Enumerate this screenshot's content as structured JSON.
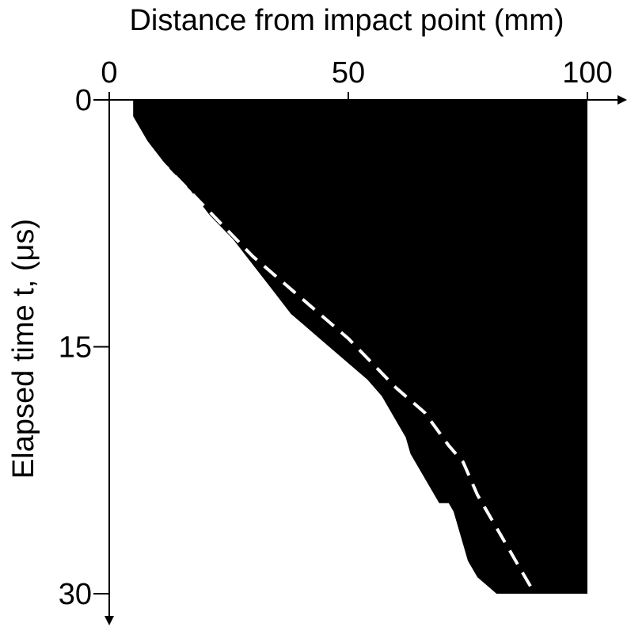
{
  "chart_data": {
    "type": "area",
    "title": "",
    "xlabel": "Distance from impact point (mm)",
    "ylabel": "Elapsed time t, (μs)",
    "xlim": [
      0,
      100
    ],
    "ylim": [
      0,
      30
    ],
    "x_axis_position": "top",
    "y_axis_inverted": true,
    "grid": false,
    "x_ticks": [
      {
        "value": 0,
        "label": "0"
      },
      {
        "value": 50,
        "label": "50"
      },
      {
        "value": 100,
        "label": "100"
      }
    ],
    "y_ticks": [
      {
        "value": 0,
        "label": "0"
      },
      {
        "value": 15,
        "label": "15"
      },
      {
        "value": 30,
        "label": "30"
      }
    ],
    "series": [
      {
        "kind": "filled-region",
        "fill": "#000000",
        "x": [
          5,
          8,
          12,
          17,
          21,
          26,
          30,
          34,
          38,
          42,
          46,
          50,
          54,
          57,
          60,
          62,
          63,
          65,
          67,
          69,
          71,
          72,
          73,
          74,
          75,
          77,
          79,
          81,
          83,
          85,
          87,
          100,
          100
        ],
        "y": [
          1,
          2.5,
          4,
          5.5,
          7,
          8.5,
          10,
          11.5,
          13,
          14,
          15,
          16,
          17,
          18,
          19.5,
          20.5,
          21.5,
          22.5,
          23.5,
          24.5,
          24.5,
          25,
          26,
          27,
          28,
          29,
          29.5,
          30,
          30,
          30,
          30,
          30,
          0
        ]
      },
      {
        "kind": "dashed-line",
        "color": "#ffffff",
        "x": [
          4,
          10,
          20,
          30,
          40,
          50,
          60,
          66,
          71,
          74,
          77,
          80,
          83,
          86,
          89
        ],
        "y": [
          1,
          3.5,
          6.5,
          9.5,
          12,
          14.5,
          17.5,
          19,
          21,
          22,
          24,
          25.5,
          27,
          28.5,
          30
        ]
      }
    ]
  }
}
